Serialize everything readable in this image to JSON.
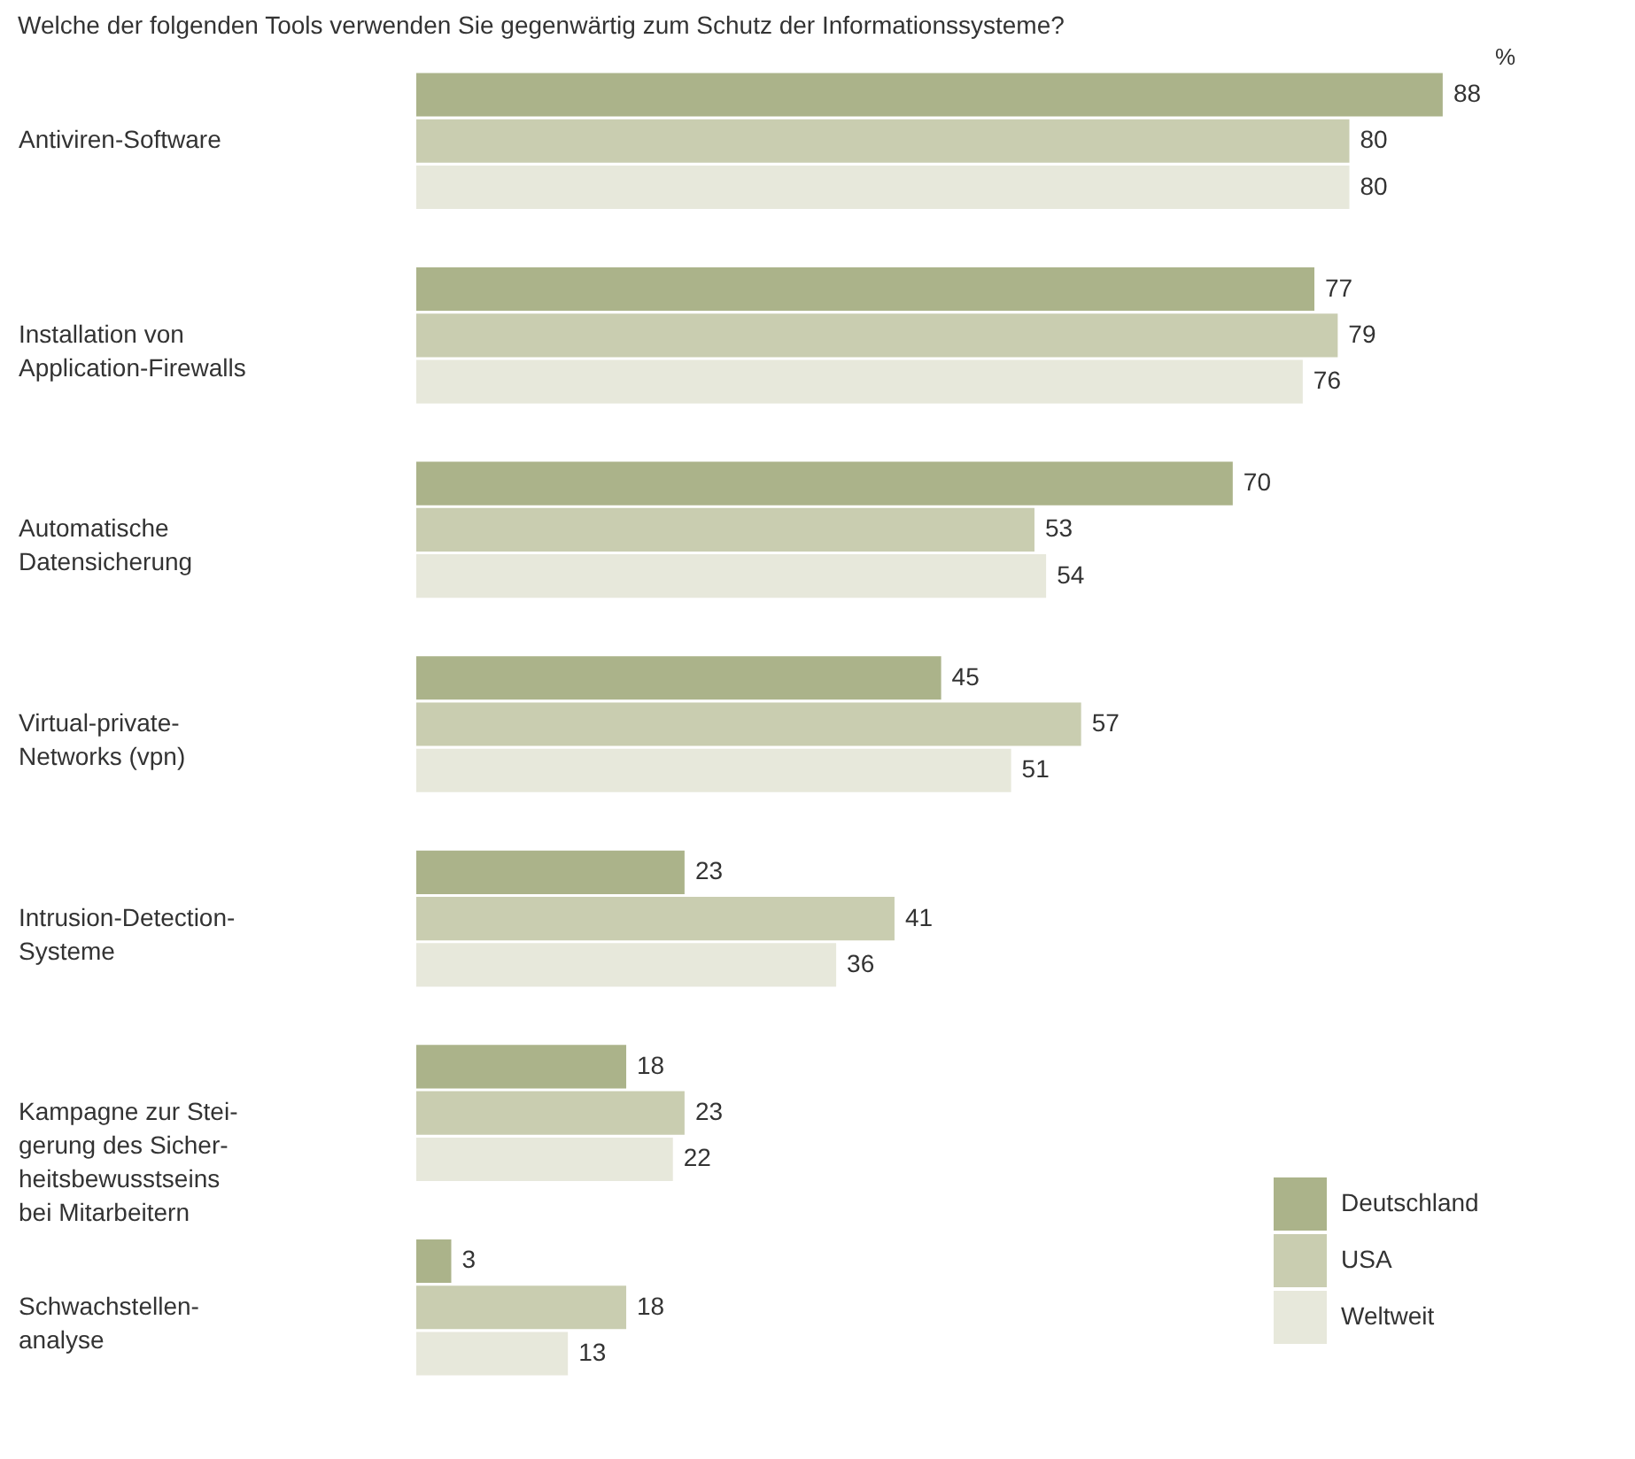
{
  "chart_data": {
    "type": "bar",
    "orientation": "horizontal",
    "title": "Welche der folgenden Tools verwenden Sie gegenwärtig zum Schutz der Informationssysteme?",
    "xlabel": "%",
    "categories": [
      "Antiviren-Software",
      "Installation von\nApplication-Firewalls",
      "Automatische\nDatensicherung",
      "Virtual-private-\nNetworks (vpn)",
      "Intrusion-Detection-\nSysteme",
      "Kampagne zur Stei-\ngerung des Sicher-\nheitsbewusstseins\nbei Mitarbeitern",
      "Schwachstellen-\nanalyse"
    ],
    "series": [
      {
        "name": "Deutschland",
        "color": "#abb38a",
        "values": [
          88,
          77,
          70,
          45,
          23,
          18,
          3
        ]
      },
      {
        "name": "USA",
        "color": "#c9cdb0",
        "values": [
          80,
          79,
          53,
          57,
          41,
          23,
          18
        ]
      },
      {
        "name": "Weltweit",
        "color": "#e7e8db",
        "values": [
          80,
          76,
          54,
          51,
          36,
          22,
          13
        ]
      }
    ],
    "data_labels": true,
    "legend": "bottom right",
    "grid": false
  }
}
